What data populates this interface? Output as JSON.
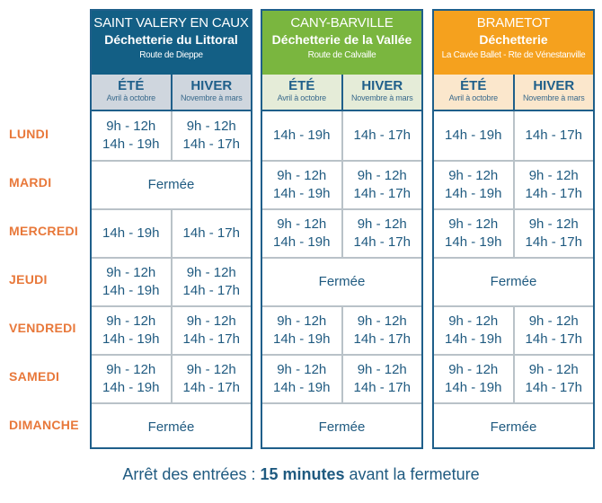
{
  "days": [
    "LUNDI",
    "MARDI",
    "MERCREDI",
    "JEUDI",
    "VENDREDI",
    "SAMEDI",
    "DIMANCHE"
  ],
  "seasons": {
    "summer": {
      "label": "ÉTÉ",
      "months": "Avril à octobre"
    },
    "winter": {
      "label": "HIVER",
      "months": "Novembre à mars"
    }
  },
  "sites": [
    {
      "town": "SAINT VALERY EN CAUX",
      "name": "Déchetterie du Littoral",
      "address": "Route de Dieppe",
      "color": "#135f85",
      "rows": [
        {
          "summer": [
            "9h - 12h",
            "14h - 19h"
          ],
          "winter": [
            "9h - 12h",
            "14h - 17h"
          ]
        },
        {
          "closed": "Fermée"
        },
        {
          "summer": [
            "14h - 19h"
          ],
          "winter": [
            "14h - 17h"
          ]
        },
        {
          "summer": [
            "9h - 12h",
            "14h - 19h"
          ],
          "winter": [
            "9h - 12h",
            "14h - 17h"
          ]
        },
        {
          "summer": [
            "9h - 12h",
            "14h - 19h"
          ],
          "winter": [
            "9h - 12h",
            "14h - 17h"
          ]
        },
        {
          "summer": [
            "9h - 12h",
            "14h - 19h"
          ],
          "winter": [
            "9h - 12h",
            "14h - 17h"
          ]
        },
        {
          "closed": "Fermée"
        }
      ]
    },
    {
      "town": "CANY-BARVILLE",
      "name": "Déchetterie de la Vallée",
      "address": "Route de Calvaille",
      "color": "#7ab63f",
      "rows": [
        {
          "summer": [
            "14h - 19h"
          ],
          "winter": [
            "14h - 17h"
          ]
        },
        {
          "summer": [
            "9h - 12h",
            "14h - 19h"
          ],
          "winter": [
            "9h - 12h",
            "14h - 17h"
          ]
        },
        {
          "summer": [
            "9h - 12h",
            "14h - 19h"
          ],
          "winter": [
            "9h - 12h",
            "14h - 17h"
          ]
        },
        {
          "closed": "Fermée"
        },
        {
          "summer": [
            "9h - 12h",
            "14h - 19h"
          ],
          "winter": [
            "9h - 12h",
            "14h - 17h"
          ]
        },
        {
          "summer": [
            "9h - 12h",
            "14h - 19h"
          ],
          "winter": [
            "9h - 12h",
            "14h - 17h"
          ]
        },
        {
          "closed": "Fermée"
        }
      ]
    },
    {
      "town": "BRAMETOT",
      "name": "Déchetterie",
      "address": "La Cavée Ballet - Rte de Vénestanville",
      "color": "#f5a11e",
      "rows": [
        {
          "summer": [
            "14h - 19h"
          ],
          "winter": [
            "14h - 17h"
          ]
        },
        {
          "summer": [
            "9h - 12h",
            "14h - 19h"
          ],
          "winter": [
            "9h - 12h",
            "14h - 17h"
          ]
        },
        {
          "summer": [
            "9h - 12h",
            "14h - 19h"
          ],
          "winter": [
            "9h - 12h",
            "14h - 17h"
          ]
        },
        {
          "closed": "Fermée"
        },
        {
          "summer": [
            "9h - 12h",
            "14h - 19h"
          ],
          "winter": [
            "9h - 12h",
            "14h - 17h"
          ]
        },
        {
          "summer": [
            "9h - 12h",
            "14h - 19h"
          ],
          "winter": [
            "9h - 12h",
            "14h - 17h"
          ]
        },
        {
          "closed": "Fermée"
        }
      ]
    }
  ],
  "footer": {
    "prefix": "Arrêt des entrées : ",
    "emphasis": "15 minutes",
    "suffix": " avant la fermeture"
  }
}
